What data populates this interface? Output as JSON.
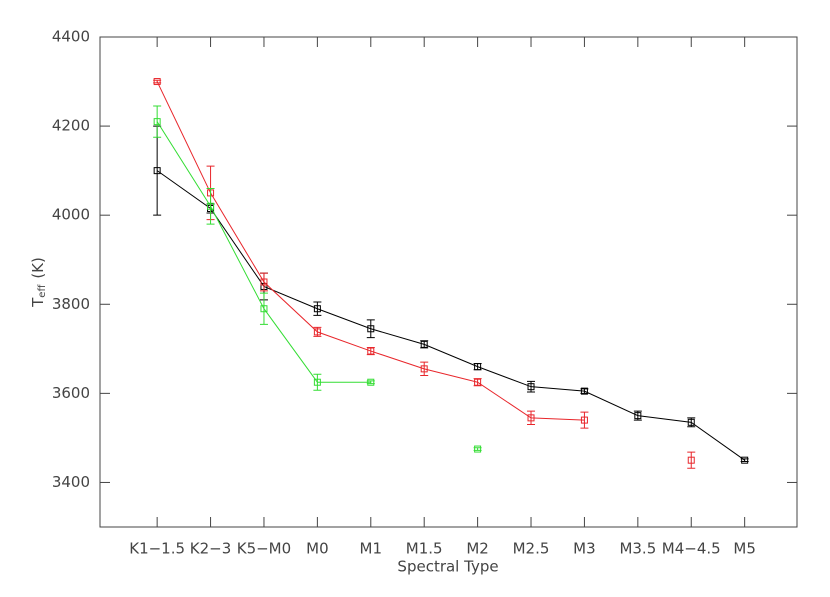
{
  "chart_data": {
    "type": "line",
    "xlabel": "Spectral Type",
    "ylabel": "T",
    "ylabel_sub": "eff",
    "ylabel_unit": "(K)",
    "categories": [
      "K1−1.5",
      "K2−3",
      "K5−M0",
      "M0",
      "M1",
      "M1.5",
      "M2",
      "M2.5",
      "M3",
      "M3.5",
      "M4−4.5",
      "M5"
    ],
    "ylim": [
      3300,
      4400
    ],
    "yticks": [
      3400,
      3600,
      3800,
      4000,
      4200,
      4400
    ],
    "series": [
      {
        "color": "#000000",
        "values": [
          4100,
          4015,
          3840,
          3790,
          3745,
          3710,
          3660,
          3615,
          3605,
          3550,
          3535,
          3450
        ],
        "errors": [
          100,
          10,
          30,
          15,
          20,
          8,
          7,
          12,
          5,
          10,
          10,
          3
        ]
      },
      {
        "color": "#e8262b",
        "values": [
          4300,
          4050,
          3850,
          3738,
          3695,
          3655,
          3625,
          3545,
          3540,
          null,
          3450,
          null
        ],
        "errors": [
          3,
          60,
          20,
          10,
          8,
          15,
          8,
          15,
          18,
          null,
          18,
          null
        ]
      },
      {
        "color": "#33dd33",
        "values": [
          4210,
          4020,
          3790,
          3625,
          3625,
          null,
          3475,
          null,
          null,
          null,
          null,
          null
        ],
        "errors": [
          35,
          40,
          35,
          18,
          3,
          null,
          3,
          null,
          null,
          null,
          null,
          null
        ]
      }
    ]
  }
}
